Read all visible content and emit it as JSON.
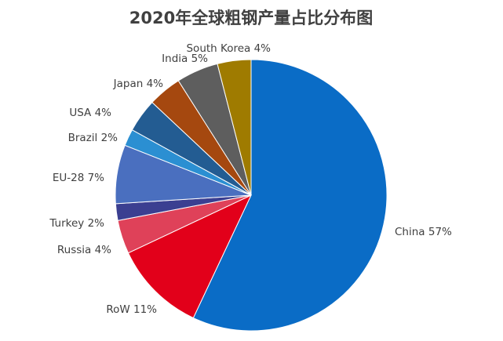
{
  "chart_data": {
    "type": "pie",
    "title": "2020年全球粗钢产量占比分布图",
    "slices": [
      {
        "name": "China",
        "value": 57,
        "label": "China 57%",
        "color": "#0a6cc6"
      },
      {
        "name": "RoW",
        "value": 11,
        "label": "RoW 11%",
        "color": "#e2001a"
      },
      {
        "name": "Russia",
        "value": 4,
        "label": "Russia 4%",
        "color": "#df4159"
      },
      {
        "name": "Turkey",
        "value": 2,
        "label": "Turkey 2%",
        "color": "#3b3f91"
      },
      {
        "name": "EU-28",
        "value": 7,
        "label": "EU-28 7%",
        "color": "#4a6fbf"
      },
      {
        "name": "Brazil",
        "value": 2,
        "label": "Brazil 2%",
        "color": "#2b8fd2"
      },
      {
        "name": "USA",
        "value": 4,
        "label": "USA 4%",
        "color": "#235c92"
      },
      {
        "name": "Japan",
        "value": 4,
        "label": "Japan 4%",
        "color": "#a5480f"
      },
      {
        "name": "India",
        "value": 5,
        "label": "India 5%",
        "color": "#5e5e5e"
      },
      {
        "name": "South Korea",
        "value": 4,
        "label": "South Korea 4%",
        "color": "#9f7b00"
      }
    ],
    "legend": "none",
    "start_angle": "12 o'clock, clockwise"
  }
}
